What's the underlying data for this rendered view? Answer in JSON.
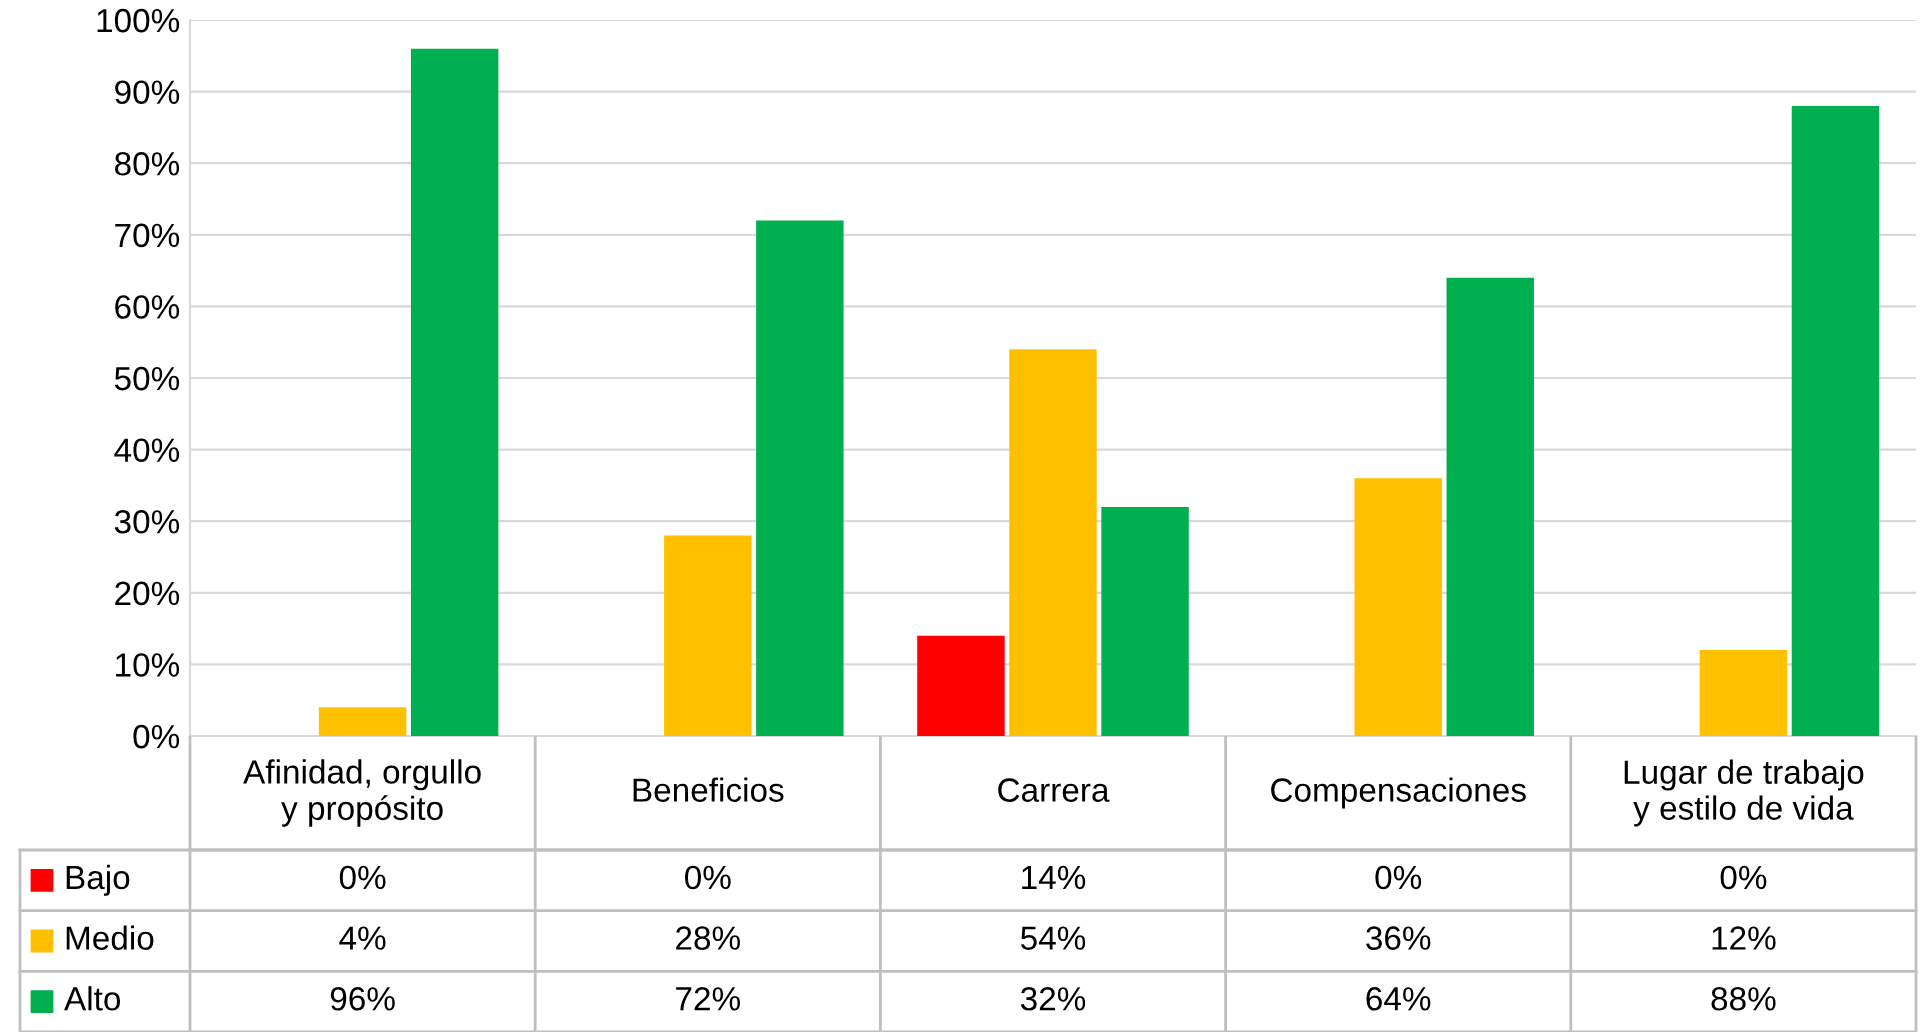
{
  "chart_data": {
    "type": "bar",
    "categories": [
      "Afinidad, orgullo\ny propósito",
      "Beneficios",
      "Carrera",
      "Compensaciones",
      "Lugar de trabajo\ny estilo de vida"
    ],
    "series": [
      {
        "name": "Bajo",
        "color": "#ff0000",
        "values": [
          0,
          0,
          14,
          0,
          0
        ],
        "value_labels": [
          "0%",
          "0%",
          "14%",
          "0%",
          "0%"
        ]
      },
      {
        "name": "Medio",
        "color": "#ffc000",
        "values": [
          4,
          28,
          54,
          36,
          12
        ],
        "value_labels": [
          "4%",
          "28%",
          "54%",
          "36%",
          "12%"
        ]
      },
      {
        "name": "Alto",
        "color": "#00b050",
        "values": [
          96,
          72,
          32,
          64,
          88
        ],
        "value_labels": [
          "96%",
          "72%",
          "32%",
          "64%",
          "88%"
        ]
      }
    ],
    "ylim": [
      0,
      100
    ],
    "yticks": [
      {
        "value": 0,
        "label": "0%"
      },
      {
        "value": 10,
        "label": "10%"
      },
      {
        "value": 20,
        "label": "20%"
      },
      {
        "value": 30,
        "label": "30%"
      },
      {
        "value": 40,
        "label": "40%"
      },
      {
        "value": 50,
        "label": "50%"
      },
      {
        "value": 60,
        "label": "60%"
      },
      {
        "value": 70,
        "label": "70%"
      },
      {
        "value": 80,
        "label": "80%"
      },
      {
        "value": 90,
        "label": "90%"
      },
      {
        "value": 100,
        "label": "100%"
      }
    ],
    "grid": "y",
    "legend": "bottom"
  }
}
